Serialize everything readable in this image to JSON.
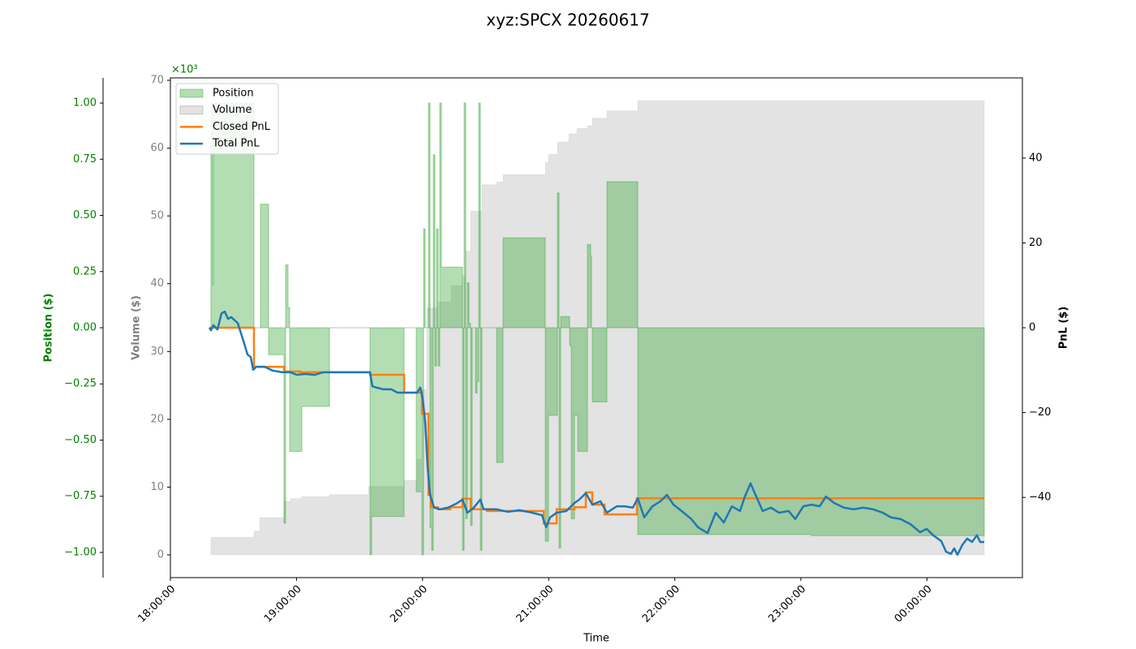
{
  "chart_data": {
    "type": "line",
    "title": "xyz:SPCX 20260617",
    "xlabel": "Time",
    "xlim": [
      "18:00:00",
      "00:45:25"
    ],
    "xticks": [
      "18:00:00",
      "19:00:00",
      "20:00:00",
      "21:00:00",
      "22:00:00",
      "23:00:00",
      "00:00:00"
    ],
    "ylabel": "Position ($)",
    "ycolor": "#008000",
    "y_offset_label": "×10³",
    "ylim": [
      -1.112,
      1.112
    ],
    "yticks": [
      {
        "value": -1,
        "label": "−1.00"
      },
      {
        "value": -0.75,
        "label": "−0.75"
      },
      {
        "value": -0.5,
        "label": "−0.50"
      },
      {
        "value": -0.25,
        "label": "−0.25"
      },
      {
        "value": 0,
        "label": "0.00"
      },
      {
        "value": 0.25,
        "label": "0.25"
      },
      {
        "value": 0.5,
        "label": "0.50"
      },
      {
        "value": 0.75,
        "label": "0.75"
      },
      {
        "value": 1,
        "label": "1.00"
      }
    ],
    "y3label": "Volume ($)",
    "y3color": "#808080",
    "y3lim": [
      -3.35,
      70.36
    ],
    "y3ticks": [
      0,
      10,
      20,
      30,
      40,
      50,
      60,
      70
    ],
    "y2label": "PnL ($)",
    "y2color": "#000000",
    "y2lim": [
      -58.9,
      58.9
    ],
    "y2ticks": [
      {
        "value": -40,
        "label": "−40"
      },
      {
        "value": -20,
        "label": "−20"
      },
      0,
      20,
      40
    ],
    "legend": "upper left",
    "series": [
      {
        "name": "Position",
        "color": "#2ca02c",
        "axis": "y",
        "style": "fill",
        "x": [
          "18:18:32",
          "18:19:18",
          "18:20:05",
          "18:20:28",
          "18:39:46",
          "18:42:51",
          "18:46:43",
          "18:54:03",
          "18:54:50",
          "18:55:59",
          "18:56:45",
          "19:02:33",
          "19:15:41",
          "19:34:59",
          "19:35:45",
          "19:51:12",
          "19:56:59",
          "19:59:41",
          "20:00:28",
          "20:01:14",
          "20:02:47",
          "20:03:33",
          "20:04:19",
          "20:05:06",
          "20:05:52",
          "20:06:38",
          "20:07:25",
          "20:08:11",
          "20:08:57",
          "20:19:00",
          "20:19:46",
          "20:20:32",
          "20:21:19",
          "20:22:05",
          "20:22:51",
          "20:23:38",
          "20:25:10",
          "20:25:57",
          "20:26:43",
          "20:27:29",
          "20:28:16",
          "20:35:13",
          "20:38:18",
          "20:58:23",
          "20:59:55",
          "21:04:10",
          "21:04:56",
          "21:05:43",
          "21:09:58",
          "21:10:44",
          "21:12:17",
          "21:13:49",
          "21:18:27",
          "21:20:00",
          "21:20:23",
          "21:20:46",
          "21:27:43",
          "21:42:23",
          "23:05:00",
          "00:27:16"
        ],
        "values": [
          0,
          1.0,
          0.19,
          1.0,
          0,
          0.55,
          -0.12,
          -0.87,
          0.28,
          0.09,
          -0.55,
          -0.35,
          0,
          -1.01,
          -0.84,
          0,
          -0.73,
          -1.01,
          0.44,
          0,
          1.0,
          -0.89,
          -0.99,
          0.77,
          -0.17,
          0.44,
          -0.17,
          1.0,
          0.27,
          -0.99,
          1.0,
          -0.85,
          0.2,
          0.02,
          -0.88,
          0,
          -0.29,
          -0.24,
          1.0,
          -0.99,
          0,
          -0.6,
          0.4,
          -0.95,
          -0.39,
          0.6,
          -0.98,
          0.05,
          -0.08,
          -0.85,
          -0.39,
          -0.55,
          0.37,
          0.32,
          0,
          -0.33,
          0.65,
          -0.92,
          -0.925,
          -0.93
        ]
      },
      {
        "name": "Volume",
        "color": "#808080",
        "axis": "y3",
        "style": "fill",
        "x": [
          "18:18:32",
          "18:19:18",
          "18:39:46",
          "18:42:28",
          "18:54:03",
          "18:57:09",
          "19:02:33",
          "19:15:41",
          "19:34:13",
          "19:51:12",
          "19:57:22",
          "19:59:41",
          "20:02:00",
          "20:07:25",
          "20:13:35",
          "20:19:00",
          "20:20:32",
          "20:22:51",
          "20:28:16",
          "20:35:13",
          "20:38:18",
          "20:58:23",
          "20:59:55",
          "21:04:10",
          "21:09:35",
          "21:13:26",
          "21:18:27",
          "21:20:46",
          "21:27:43",
          "21:42:23",
          "00:27:16"
        ],
        "values": [
          0,
          2.6,
          3.5,
          5.5,
          7.9,
          8.3,
          8.6,
          8.9,
          10.1,
          11.0,
          14.1,
          24.4,
          36.4,
          37.3,
          39.7,
          41.2,
          44.8,
          50.7,
          54.6,
          55.0,
          56.1,
          57.9,
          59.1,
          60.9,
          62.1,
          62.9,
          63.3,
          64.4,
          65.5,
          67.0,
          67.0
        ]
      },
      {
        "name": "Closed PnL",
        "color": "#ff7f0e",
        "axis": "y2",
        "style": "step",
        "x": [
          "18:18:32",
          "18:39:46",
          "18:54:03",
          "19:01:47",
          "19:34:59",
          "19:51:12",
          "19:59:41",
          "20:02:47",
          "20:03:56",
          "20:07:25",
          "20:13:12",
          "20:19:00",
          "20:22:51",
          "20:30:35",
          "20:57:37",
          "21:03:47",
          "21:12:17",
          "21:17:41",
          "21:20:46",
          "21:26:34",
          "21:42:00",
          "00:27:16"
        ],
        "values": [
          0,
          -9.2,
          -10.3,
          -10.5,
          -11.1,
          -15.3,
          -20.3,
          -39.4,
          -42.3,
          -42.8,
          -42.3,
          -40.3,
          -42.8,
          -43.2,
          -46.1,
          -42.8,
          -42.3,
          -38.8,
          -41.7,
          -44.0,
          -40.2,
          -40.2
        ]
      },
      {
        "name": "Total PnL",
        "color": "#1f77b4",
        "axis": "y2",
        "style": "line",
        "x": [
          "18:18:32",
          "18:19:18",
          "18:20:28",
          "18:22:24",
          "18:24:20",
          "18:25:52",
          "18:27:25",
          "18:28:57",
          "18:32:03",
          "18:34:45",
          "18:36:41",
          "18:38:13",
          "18:39:23",
          "18:40:56",
          "18:44:47",
          "18:48:39",
          "18:53:17",
          "18:57:09",
          "19:00:14",
          "19:04:05",
          "19:08:43",
          "19:12:35",
          "19:34:59",
          "19:36:08",
          "19:38:04",
          "19:41:10",
          "19:45:01",
          "19:48:06",
          "19:57:22",
          "19:58:55",
          "20:00:05",
          "20:01:14",
          "20:02:23",
          "20:03:33",
          "20:05:29",
          "20:08:11",
          "20:12:03",
          "20:15:54",
          "20:19:00",
          "20:21:19",
          "20:24:24",
          "20:27:29",
          "20:29:02",
          "20:35:13",
          "20:40:37",
          "20:46:01",
          "20:52:12",
          "20:56:50",
          "20:58:46",
          "21:00:42",
          "21:03:47",
          "21:08:25",
          "21:12:17",
          "21:14:35",
          "21:17:41",
          "21:20:46",
          "21:24:38",
          "21:27:43",
          "21:32:21",
          "21:36:13",
          "21:40:05",
          "21:42:23",
          "21:45:29",
          "21:49:20",
          "21:53:12",
          "21:56:17",
          "21:59:23",
          "22:03:14",
          "22:07:53",
          "22:10:58",
          "22:15:36",
          "22:19:28",
          "22:23:19",
          "22:27:11",
          "22:31:03",
          "22:33:21",
          "22:36:04",
          "22:38:46",
          "22:41:51",
          "22:45:43",
          "22:49:34",
          "22:54:12",
          "22:57:18",
          "23:01:10",
          "23:05:00",
          "23:08:53",
          "23:11:58",
          "23:15:50",
          "23:20:28",
          "23:25:05",
          "23:29:44",
          "23:34:22",
          "23:38:59",
          "23:42:51",
          "23:47:29",
          "23:52:07",
          "23:56:45",
          "23:59:50",
          "00:02:56",
          "00:06:48",
          "00:09:07",
          "00:11:26",
          "00:12:58",
          "00:14:31",
          "00:16:50",
          "00:19:09",
          "00:21:28",
          "00:23:47",
          "00:25:20",
          "00:27:16"
        ],
        "values": [
          0.0,
          -0.6,
          0.6,
          -0.4,
          3.4,
          3.8,
          2.1,
          2.5,
          1.1,
          -3.1,
          -6.3,
          -6.9,
          -9.9,
          -9.2,
          -9.2,
          -10.1,
          -10.5,
          -10.5,
          -11.1,
          -10.9,
          -11.1,
          -10.5,
          -10.5,
          -13.8,
          -14.1,
          -14.5,
          -14.5,
          -15.3,
          -15.3,
          -14.1,
          -16.8,
          -22.2,
          -32.7,
          -39.4,
          -42.4,
          -42.8,
          -42.4,
          -41.5,
          -40.5,
          -43.6,
          -42.4,
          -40.5,
          -42.8,
          -42.8,
          -43.4,
          -43.0,
          -43.6,
          -44.2,
          -47.0,
          -44.7,
          -43.6,
          -43.2,
          -41.3,
          -40.5,
          -39.0,
          -41.7,
          -40.9,
          -43.6,
          -42.1,
          -42.1,
          -42.4,
          -40.2,
          -44.7,
          -42.1,
          -40.9,
          -39.4,
          -41.7,
          -43.2,
          -45.1,
          -47.0,
          -48.4,
          -43.6,
          -45.9,
          -42.1,
          -43.2,
          -39.8,
          -36.7,
          -39.8,
          -43.2,
          -42.4,
          -43.6,
          -43.2,
          -45.1,
          -42.1,
          -41.7,
          -42.1,
          -39.8,
          -41.3,
          -42.4,
          -42.8,
          -42.4,
          -42.8,
          -43.6,
          -44.7,
          -45.1,
          -46.3,
          -48.2,
          -47.4,
          -48.9,
          -50.3,
          -52.8,
          -53.3,
          -52.0,
          -53.5,
          -51.2,
          -49.7,
          -50.5,
          -48.9,
          -50.5,
          -50.5
        ]
      }
    ]
  }
}
